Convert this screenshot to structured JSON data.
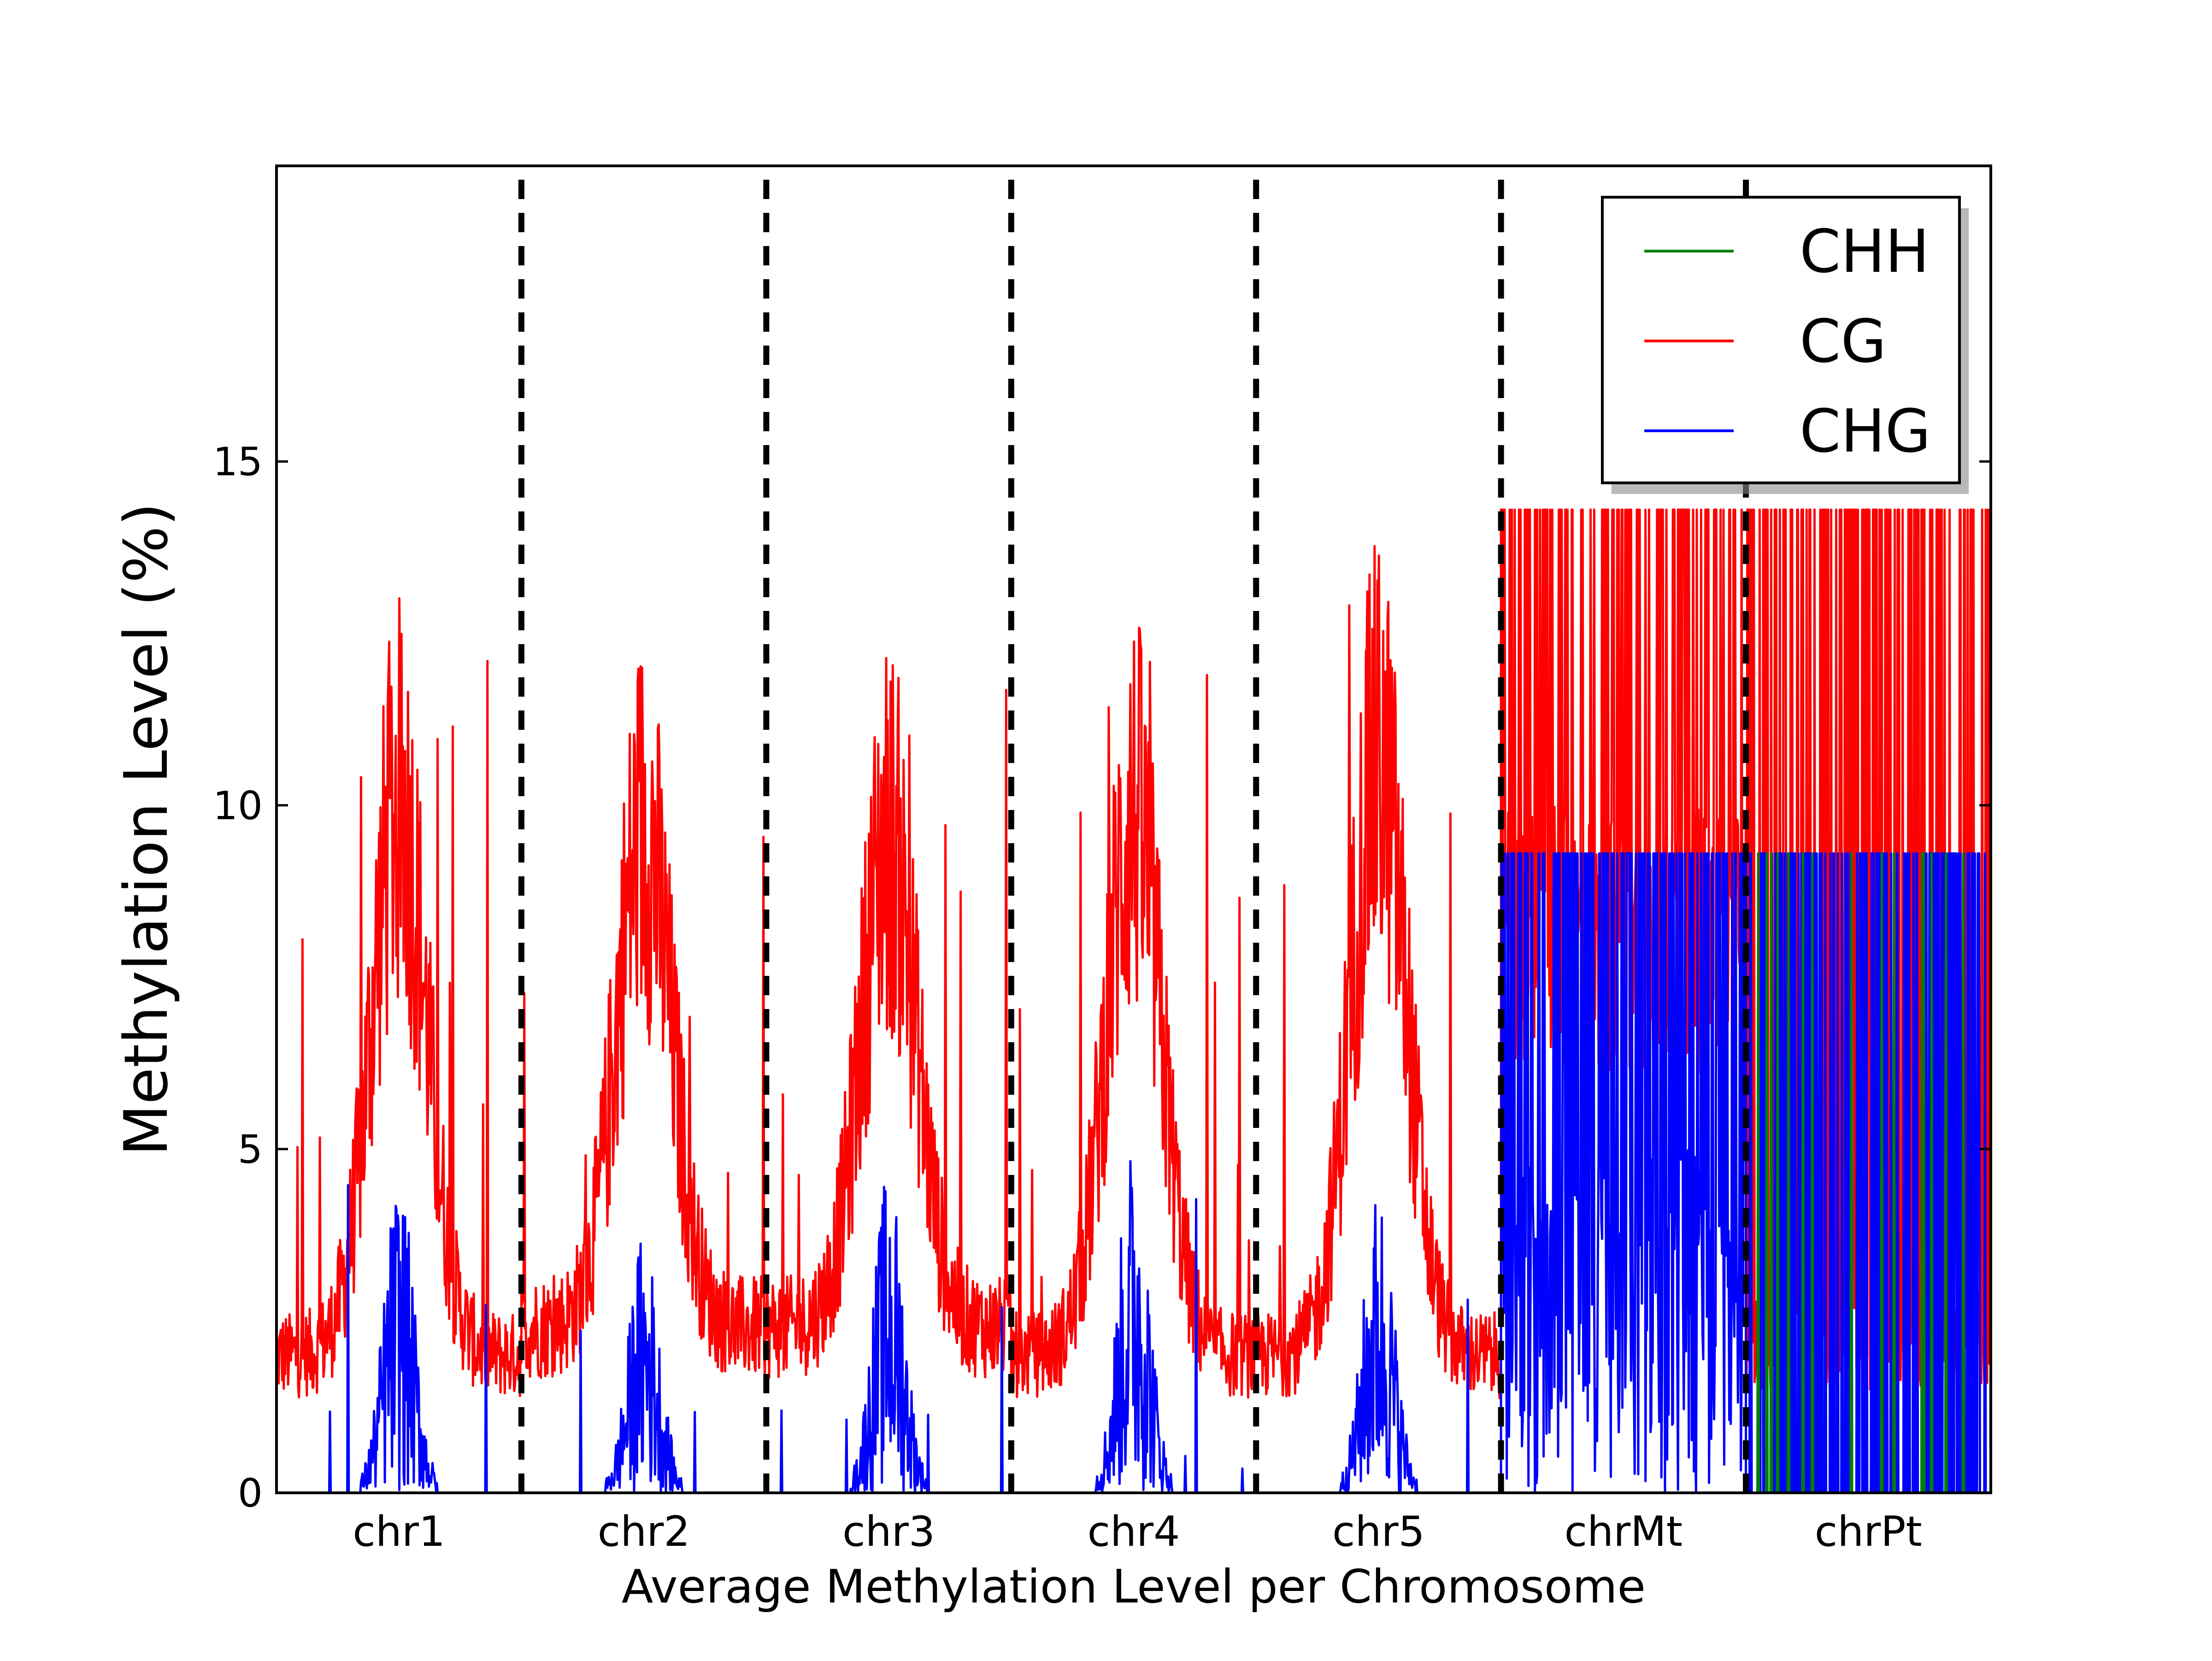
{
  "chart_data": {
    "type": "line",
    "title": "",
    "xlabel": "Average Methylation Level per Chromosome",
    "ylabel": "Methylation Level (%)",
    "ylim": [
      0,
      19.3
    ],
    "yticks": [
      0,
      5,
      10,
      15
    ],
    "ytick_labels": [
      "0",
      "5",
      "10",
      "15"
    ],
    "categories": [
      "chr1",
      "chr2",
      "chr3",
      "chr4",
      "chr5",
      "chrMt",
      "chrPt"
    ],
    "category_separators": "dashed black vertical lines between chromosomes",
    "grid": false,
    "legend": {
      "position": "top-right",
      "entries": [
        {
          "name": "CHH",
          "color": "#008000"
        },
        {
          "name": "CG",
          "color": "#ff0000"
        },
        {
          "name": "CHG",
          "color": "#0000ff"
        }
      ]
    },
    "series": [
      {
        "name": "CG",
        "color": "#ff0000",
        "peak_values_by_chromosome": [
          12.5,
          12.0,
          11.9,
          12.3,
          13.3,
          14.3,
          14.3
        ],
        "baseline_values_by_chromosome": [
          2.5,
          3.0,
          3.0,
          2.5,
          2.5,
          6.0,
          1.5
        ]
      },
      {
        "name": "CHG",
        "color": "#0000ff",
        "peak_values_by_chromosome": [
          4.6,
          3.8,
          4.7,
          5.2,
          4.5,
          9.3,
          9.3
        ],
        "baseline_values_by_chromosome": [
          0.0,
          0.0,
          0.0,
          0.0,
          0.0,
          5.0,
          0.0
        ]
      },
      {
        "name": "CHH",
        "color": "#008000",
        "peak_values_by_chromosome": [
          0.0,
          0.0,
          0.0,
          0.0,
          0.0,
          0.0,
          9.3
        ],
        "baseline_values_by_chromosome": [
          0.0,
          0.0,
          0.0,
          0.0,
          0.0,
          0.0,
          0.0
        ]
      }
    ]
  }
}
